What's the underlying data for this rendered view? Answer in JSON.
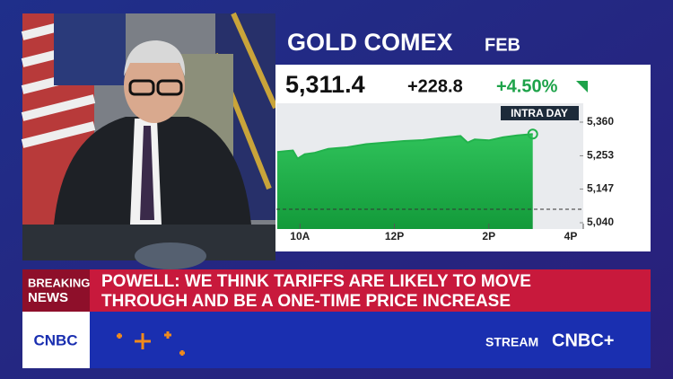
{
  "header": {
    "title": "GOLD COMEX",
    "contract": "FEB"
  },
  "quote": {
    "price": "5,311.4",
    "change": "+228.8",
    "change_pct": "+4.50%"
  },
  "chart": {
    "type": "line",
    "label": "INTRA DAY",
    "x": [
      9.52,
      9.7,
      9.85,
      9.95,
      10.1,
      10.3,
      10.6,
      11,
      11.4,
      11.8,
      12.2,
      12.6,
      13,
      13.4,
      13.55,
      13.7,
      14,
      14.3,
      14.6,
      14.93
    ],
    "values": [
      5265,
      5268,
      5270,
      5244,
      5258,
      5262,
      5275,
      5280,
      5290,
      5295,
      5300,
      5303,
      5310,
      5316,
      5295,
      5305,
      5302,
      5312,
      5318,
      5322
    ],
    "color": "#22b24c",
    "reference_value": 5083,
    "xlim": [
      9.5,
      16
    ],
    "xticks": [
      {
        "value": 10,
        "label": "10A"
      },
      {
        "value": 12,
        "label": "12P"
      },
      {
        "value": 14,
        "label": "2P"
      },
      {
        "value": 16,
        "label": "4P"
      }
    ],
    "ylim": [
      5020,
      5420
    ],
    "yticks": [
      {
        "value": 5040,
        "label": "5,040"
      },
      {
        "value": 5147,
        "label": "5,147"
      },
      {
        "value": 5253,
        "label": "5,253"
      },
      {
        "value": 5360,
        "label": "5,360"
      }
    ]
  },
  "banner": {
    "tag_line1": "BREAKING",
    "tag_line2": "NEWS",
    "headline_line1": "POWELL: WE THINK TARIFFS ARE LIKELY TO MOVE",
    "headline_line2": "THROUGH AND BE A ONE-TIME PRICE INCREASE"
  },
  "footer": {
    "logo": "CNBC",
    "stream": "STREAM",
    "stream_brand": "CNBC+"
  }
}
